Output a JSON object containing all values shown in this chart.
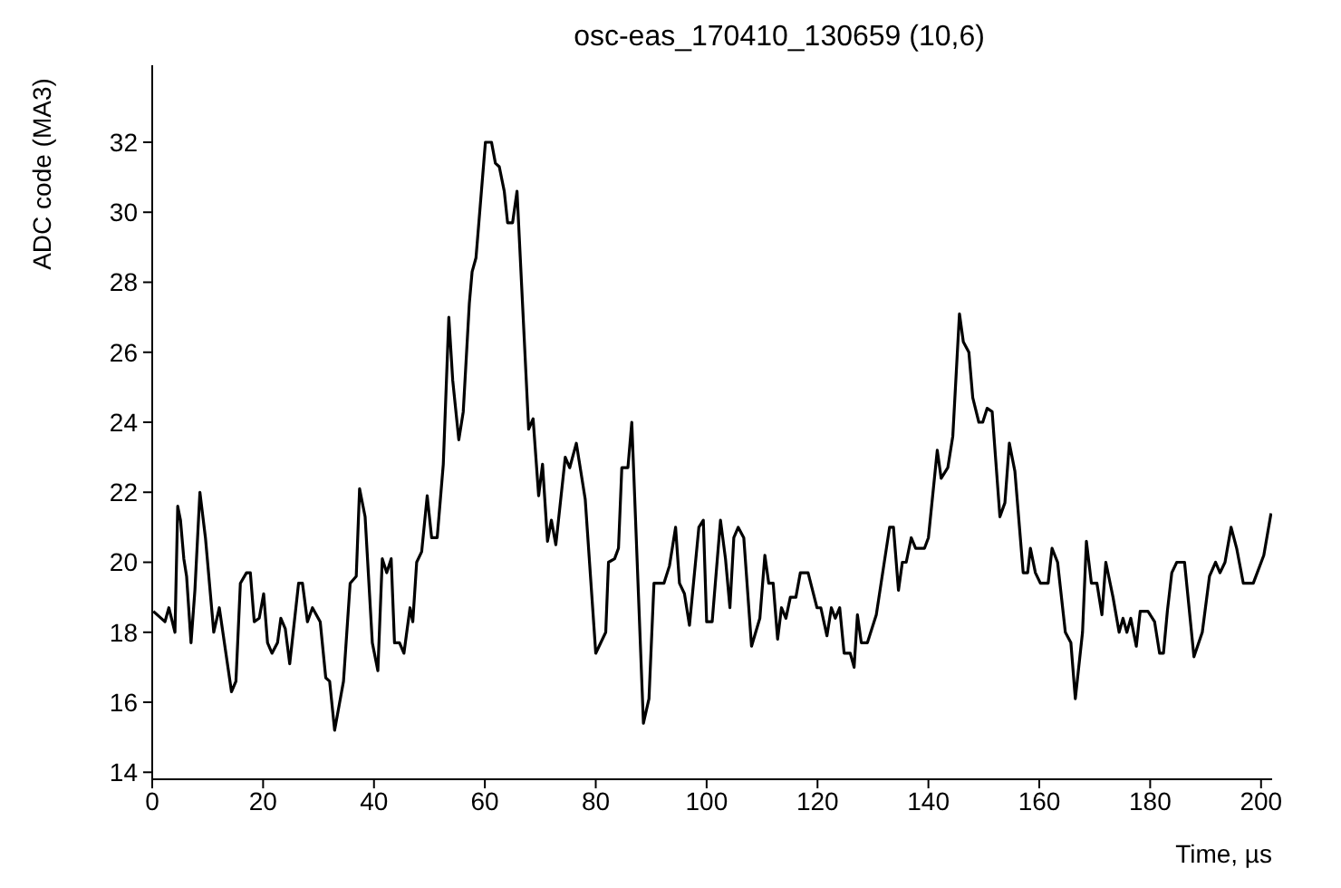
{
  "chart_data": {
    "type": "line",
    "title": "osc-eas_170410_130659 (10,6)",
    "xlabel": "Time, µs",
    "ylabel": "ADC code (MA3)",
    "xlim": [
      0,
      202
    ],
    "xticks": [
      0,
      20,
      40,
      60,
      80,
      100,
      120,
      140,
      160,
      180,
      200
    ],
    "ylim": [
      13.8,
      34.2
    ],
    "yticks": [
      14,
      16,
      18,
      20,
      22,
      24,
      26,
      28,
      30,
      32
    ],
    "grid": false,
    "marker": "none",
    "line_style": "solid",
    "series": [
      {
        "color": "#000000",
        "x": [
          0.2,
          2.3,
          3.0,
          4.1,
          4.6,
          5.1,
          5.7,
          6.2,
          7.0,
          7.7,
          8.6,
          9.6,
          11.1,
          12.1,
          14.3,
          15.1,
          15.9,
          17.0,
          17.7,
          18.4,
          19.3,
          20.1,
          20.8,
          21.6,
          22.6,
          23.2,
          24.0,
          24.8,
          26.4,
          27.1,
          28.0,
          28.9,
          30.3,
          31.3,
          32.0,
          32.9,
          34.5,
          35.7,
          36.8,
          37.4,
          38.4,
          39.7,
          40.7,
          41.5,
          42.3,
          43.1,
          43.7,
          44.6,
          45.4,
          46.5,
          47.0,
          47.7,
          48.6,
          49.6,
          50.4,
          51.4,
          52.5,
          53.5,
          54.2,
          55.3,
          56.1,
          57.2,
          57.7,
          58.4,
          60.1,
          61.2,
          61.9,
          62.6,
          63.5,
          64.1,
          65.0,
          65.8,
          67.9,
          68.7,
          69.7,
          70.4,
          71.3,
          72.0,
          72.8,
          74.5,
          75.3,
          76.5,
          78.1,
          80.0,
          81.8,
          82.3,
          83.4,
          84.1,
          84.7,
          85.8,
          86.5,
          88.6,
          89.6,
          90.5,
          92.3,
          93.3,
          94.4,
          95.1,
          96.0,
          96.9,
          98.6,
          99.4,
          100.0,
          101.0,
          102.5,
          103.4,
          104.2,
          104.9,
          105.7,
          106.7,
          108.1,
          109.6,
          110.5,
          111.2,
          112.0,
          112.8,
          113.5,
          114.3,
          115.1,
          116.1,
          116.9,
          118.3,
          119.9,
          120.6,
          121.7,
          122.5,
          123.2,
          124.0,
          124.8,
          125.9,
          126.6,
          127.2,
          127.9,
          129.0,
          130.6,
          133.0,
          133.7,
          134.6,
          135.3,
          136.0,
          136.9,
          137.7,
          139.3,
          140.0,
          141.6,
          142.3,
          143.5,
          144.4,
          145.6,
          146.3,
          147.3,
          148.0,
          149.1,
          149.8,
          150.6,
          151.5,
          152.9,
          153.8,
          154.6,
          155.6,
          157.1,
          157.9,
          158.4,
          159.3,
          160.2,
          161.6,
          162.3,
          163.3,
          164.7,
          165.7,
          166.5,
          167.8,
          168.5,
          169.4,
          170.4,
          171.3,
          172.0,
          173.3,
          174.4,
          175.1,
          175.8,
          176.5,
          177.5,
          178.2,
          179.6,
          180.8,
          181.7,
          182.4,
          183.1,
          183.9,
          184.8,
          186.2,
          187.9,
          189.4,
          190.7,
          191.8,
          192.6,
          193.5,
          194.6,
          195.6,
          196.8,
          198.6,
          200.5,
          201.8
        ],
        "values": [
          18.6,
          18.3,
          18.7,
          18.0,
          21.6,
          21.2,
          20.1,
          19.6,
          17.7,
          19.2,
          22.0,
          20.7,
          18.0,
          18.7,
          16.3,
          16.6,
          19.4,
          19.7,
          19.7,
          18.3,
          18.4,
          19.1,
          17.7,
          17.4,
          17.7,
          18.4,
          18.1,
          17.1,
          19.4,
          19.4,
          18.3,
          18.7,
          18.3,
          16.7,
          16.6,
          15.2,
          16.6,
          19.4,
          19.6,
          22.1,
          21.3,
          17.7,
          16.9,
          20.1,
          19.7,
          20.1,
          17.7,
          17.7,
          17.4,
          18.7,
          18.3,
          20.0,
          20.3,
          21.9,
          20.7,
          20.7,
          22.8,
          27.0,
          25.2,
          23.5,
          24.3,
          27.4,
          28.3,
          28.7,
          32.0,
          32.0,
          31.4,
          31.3,
          30.6,
          29.7,
          29.7,
          30.6,
          23.8,
          24.1,
          21.9,
          22.8,
          20.6,
          21.2,
          20.5,
          23.0,
          22.7,
          23.4,
          21.8,
          17.4,
          18.0,
          20.0,
          20.1,
          20.4,
          22.7,
          22.7,
          24.0,
          15.4,
          16.1,
          19.4,
          19.4,
          19.9,
          21.0,
          19.4,
          19.1,
          18.2,
          21.0,
          21.2,
          18.3,
          18.3,
          21.2,
          20.1,
          18.7,
          20.7,
          21.0,
          20.7,
          17.6,
          18.4,
          20.2,
          19.4,
          19.4,
          17.8,
          18.7,
          18.4,
          19.0,
          19.0,
          19.7,
          19.7,
          18.7,
          18.7,
          17.9,
          18.7,
          18.4,
          18.7,
          17.4,
          17.4,
          17.0,
          18.5,
          17.7,
          17.7,
          18.5,
          21.0,
          21.0,
          19.2,
          20.0,
          20.0,
          20.7,
          20.4,
          20.4,
          20.7,
          23.2,
          22.4,
          22.7,
          23.6,
          27.1,
          26.3,
          26.0,
          24.7,
          24.0,
          24.0,
          24.4,
          24.3,
          21.3,
          21.7,
          23.4,
          22.6,
          19.7,
          19.7,
          20.4,
          19.7,
          19.4,
          19.4,
          20.4,
          20.0,
          18.0,
          17.7,
          16.1,
          18.0,
          20.6,
          19.4,
          19.4,
          18.5,
          20.0,
          19.0,
          18.0,
          18.4,
          18.0,
          18.4,
          17.6,
          18.6,
          18.6,
          18.3,
          17.4,
          17.4,
          18.6,
          19.7,
          20.0,
          20.0,
          17.3,
          18.0,
          19.6,
          20.0,
          19.7,
          20.0,
          21.0,
          20.4,
          19.4,
          19.4,
          20.2,
          21.4
        ]
      }
    ]
  }
}
